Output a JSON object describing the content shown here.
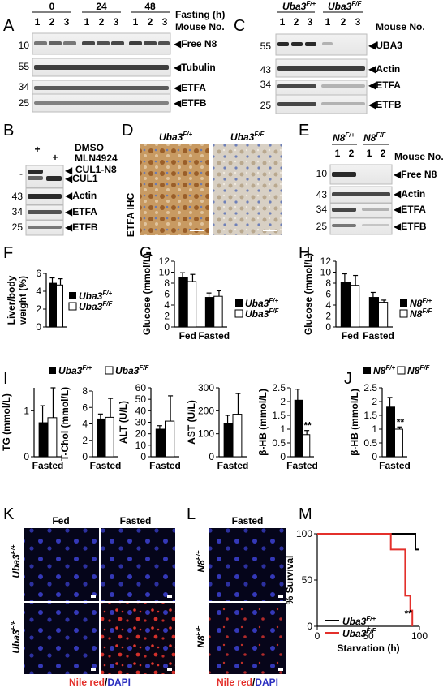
{
  "figure_source": "PNAS",
  "colors": {
    "black": "#000000",
    "red": "#e3302b",
    "nuclei": "#3a3cc8",
    "lipid": "#e0332d",
    "ihc_brown": "#b27a3c",
    "ihc_blue": "#8ea0c8"
  },
  "panelA": {
    "label": "A",
    "header_times": [
      "0",
      "24",
      "48"
    ],
    "header_caption": "Fasting (h)",
    "mouse_caption": "Mouse No.",
    "mouse_numbers": [
      "1",
      "2",
      "3",
      "1",
      "2",
      "3",
      "1",
      "2",
      "3"
    ],
    "rows": [
      {
        "mw": "10",
        "name": "Free N8"
      },
      {
        "mw": "55",
        "name": "Tubulin"
      },
      {
        "mw": "34",
        "name": "ETFA"
      },
      {
        "mw": "25",
        "name": "ETFB"
      }
    ]
  },
  "panelB": {
    "label": "B",
    "plus1": "+",
    "plus2": "+",
    "treat1": "DMSO",
    "treat2": "MLN4924",
    "cul_neddylated": "CUL1-N8",
    "cul": "CUL1",
    "rows": [
      {
        "mw": "43",
        "name": "Actin"
      },
      {
        "mw": "34",
        "name": "ETFA"
      },
      {
        "mw": "25",
        "name": "ETFB"
      }
    ]
  },
  "panelC": {
    "label": "C",
    "geno1": "Uba3",
    "geno1_sup": "F/+",
    "geno2": "Uba3",
    "geno2_sup": "F/F",
    "mouse_caption": "Mouse No.",
    "mouse_numbers": [
      "1",
      "2",
      "3",
      "1",
      "2",
      "3"
    ],
    "rows": [
      {
        "mw": "55",
        "name": "UBA3"
      },
      {
        "mw": "43",
        "name": "Actin"
      },
      {
        "mw": "34",
        "name": "ETFA"
      },
      {
        "mw": "25",
        "name": "ETFB"
      }
    ]
  },
  "panelD": {
    "label": "D",
    "side": "ETFA IHC",
    "g1": "Uba3",
    "g1sup": "F/+",
    "g2": "Uba3",
    "g2sup": "F/F"
  },
  "panelE": {
    "label": "E",
    "geno1": "N8",
    "geno1_sup": "F/+",
    "geno2": "N8",
    "geno2_sup": "F/F",
    "mouse_caption": "Mouse No.",
    "mouse_numbers": [
      "1",
      "2",
      "1",
      "2"
    ],
    "rows": [
      {
        "mw": "10",
        "name": "Free N8"
      },
      {
        "mw": "43",
        "name": "Actin"
      },
      {
        "mw": "34",
        "name": "ETFA"
      },
      {
        "mw": "25",
        "name": "ETFB"
      }
    ]
  },
  "panelK": {
    "label": "K",
    "col1": "Fed",
    "col2": "Fasted",
    "row1": "Uba3",
    "row1sup": "F/+",
    "row2": "Uba3",
    "row2sup": "F/F",
    "stain1": "Nile red",
    "stain_sep": "/",
    "stain2": "DAPI"
  },
  "panelL": {
    "label": "L",
    "col1": "Fasted",
    "row1": "N8",
    "row1sup": "F/+",
    "row2": "N8",
    "row2sup": "F/F",
    "stain1": "Nile red",
    "stain_sep": "/",
    "stain2": "DAPI"
  },
  "legends": {
    "uba_fp": "Uba3",
    "uba_fp_sup": "F/+",
    "uba_ff": "Uba3",
    "uba_ff_sup": "F/F",
    "n8_fp": "N8",
    "n8_fp_sup": "F/+",
    "n8_ff": "N8",
    "n8_ff_sup": "F/F"
  },
  "chart_data": [
    {
      "panel": "F",
      "type": "bar",
      "ylabel": "Liver/body weight (%)",
      "ylim": [
        0,
        6
      ],
      "yticks": [
        0,
        2,
        4,
        6
      ],
      "categories": [
        ""
      ],
      "series": [
        {
          "name": "Uba3F/+",
          "values": [
            4.9
          ],
          "errors": [
            0.6
          ]
        },
        {
          "name": "Uba3F/F",
          "values": [
            4.7
          ],
          "errors": [
            0.7
          ]
        }
      ]
    },
    {
      "panel": "G",
      "type": "bar",
      "ylabel": "Glucose (mmol/L)",
      "ylim": [
        0,
        12
      ],
      "yticks": [
        0,
        2,
        4,
        6,
        8,
        10,
        12
      ],
      "categories": [
        "Fed",
        "Fasted"
      ],
      "series": [
        {
          "name": "Uba3F/+",
          "values": [
            9.0,
            5.4
          ],
          "errors": [
            0.9,
            0.8
          ]
        },
        {
          "name": "Uba3F/F",
          "values": [
            8.3,
            5.6
          ],
          "errors": [
            1.3,
            1.0
          ]
        }
      ]
    },
    {
      "panel": "H",
      "type": "bar",
      "ylabel": "Glucose (mmol/L)",
      "ylim": [
        0,
        12
      ],
      "yticks": [
        0,
        2,
        4,
        6,
        8,
        10,
        12
      ],
      "categories": [
        "Fed",
        "Fasted"
      ],
      "series": [
        {
          "name": "N8F/+",
          "values": [
            8.2,
            5.4
          ],
          "errors": [
            1.5,
            0.9
          ]
        },
        {
          "name": "N8F/F",
          "values": [
            7.6,
            4.5
          ],
          "errors": [
            1.8,
            0.4
          ]
        }
      ]
    },
    {
      "panel": "I1",
      "type": "bar",
      "ylabel": "TG (mmol/L)",
      "ylim": [
        0,
        1.5
      ],
      "yticks": [
        0,
        1
      ],
      "categories": [
        "Fasted"
      ],
      "series": [
        {
          "name": "Uba3F/+",
          "values": [
            0.74
          ],
          "errors": [
            0.37
          ]
        },
        {
          "name": "Uba3F/F",
          "values": [
            0.85
          ],
          "errors": [
            0.65
          ]
        }
      ]
    },
    {
      "panel": "I2",
      "type": "bar",
      "ylabel": "T-Chol (mmol/L)",
      "ylim": [
        0,
        8
      ],
      "yticks": [
        0,
        2,
        4,
        6,
        8
      ],
      "categories": [
        "Fasted"
      ],
      "series": [
        {
          "name": "Uba3F/+",
          "values": [
            4.6
          ],
          "errors": [
            0.6
          ]
        },
        {
          "name": "Uba3F/F",
          "values": [
            4.8
          ],
          "errors": [
            2.3
          ]
        }
      ]
    },
    {
      "panel": "I3",
      "type": "bar",
      "ylabel": "ALT (U/L)",
      "ylim": [
        0,
        60
      ],
      "yticks": [
        0,
        10,
        20,
        30,
        40,
        50,
        60
      ],
      "categories": [
        "Fasted"
      ],
      "series": [
        {
          "name": "Uba3F/+",
          "values": [
            24
          ],
          "errors": [
            3
          ]
        },
        {
          "name": "Uba3F/F",
          "values": [
            31
          ],
          "errors": [
            22
          ]
        }
      ]
    },
    {
      "panel": "I4",
      "type": "bar",
      "ylabel": "AST (U/L)",
      "ylim": [
        0,
        300
      ],
      "yticks": [
        0,
        100,
        200,
        300
      ],
      "categories": [
        "Fasted"
      ],
      "series": [
        {
          "name": "Uba3F/+",
          "values": [
            145
          ],
          "errors": [
            35
          ]
        },
        {
          "name": "Uba3F/F",
          "values": [
            185
          ],
          "errors": [
            90
          ]
        }
      ]
    },
    {
      "panel": "I5",
      "type": "bar",
      "ylabel": "β-HB (mmol/L)",
      "ylim": [
        0,
        2.5
      ],
      "yticks": [
        0,
        0.5,
        1.0,
        1.5,
        2.0,
        2.5
      ],
      "categories": [
        "Fasted"
      ],
      "annotation": "**",
      "series": [
        {
          "name": "Uba3F/+",
          "values": [
            2.05
          ],
          "errors": [
            0.4
          ]
        },
        {
          "name": "Uba3F/F",
          "values": [
            0.8
          ],
          "errors": [
            0.15
          ]
        }
      ]
    },
    {
      "panel": "J",
      "type": "bar",
      "ylabel": "β-HB (mmol/L)",
      "ylim": [
        0,
        2.5
      ],
      "yticks": [
        0,
        0.5,
        1.0,
        1.5,
        2.0,
        2.5
      ],
      "categories": [
        "Fasted"
      ],
      "annotation": "**",
      "series": [
        {
          "name": "N8F/+",
          "values": [
            1.8
          ],
          "errors": [
            0.35
          ]
        },
        {
          "name": "N8F/F",
          "values": [
            1.0
          ],
          "errors": [
            0.08
          ]
        }
      ]
    },
    {
      "panel": "M",
      "type": "line",
      "xlabel": "Starvation (h)",
      "ylabel": "% Survival",
      "xlim": [
        0,
        100
      ],
      "ylim": [
        0,
        100
      ],
      "xticks": [
        0,
        50,
        100
      ],
      "yticks": [
        0,
        50,
        100
      ],
      "annotation": "**",
      "series": [
        {
          "name": "Uba3F/+",
          "color": "#000000",
          "steps": [
            [
              0,
              100
            ],
            [
              96,
              100
            ],
            [
              96,
              83
            ],
            [
              100,
              83
            ]
          ]
        },
        {
          "name": "Uba3F/F",
          "color": "#e3302b",
          "steps": [
            [
              0,
              100
            ],
            [
              72,
              100
            ],
            [
              72,
              83
            ],
            [
              86,
              83
            ],
            [
              86,
              33
            ],
            [
              91,
              33
            ],
            [
              91,
              17
            ],
            [
              93,
              17
            ],
            [
              93,
              0
            ]
          ]
        }
      ]
    }
  ]
}
